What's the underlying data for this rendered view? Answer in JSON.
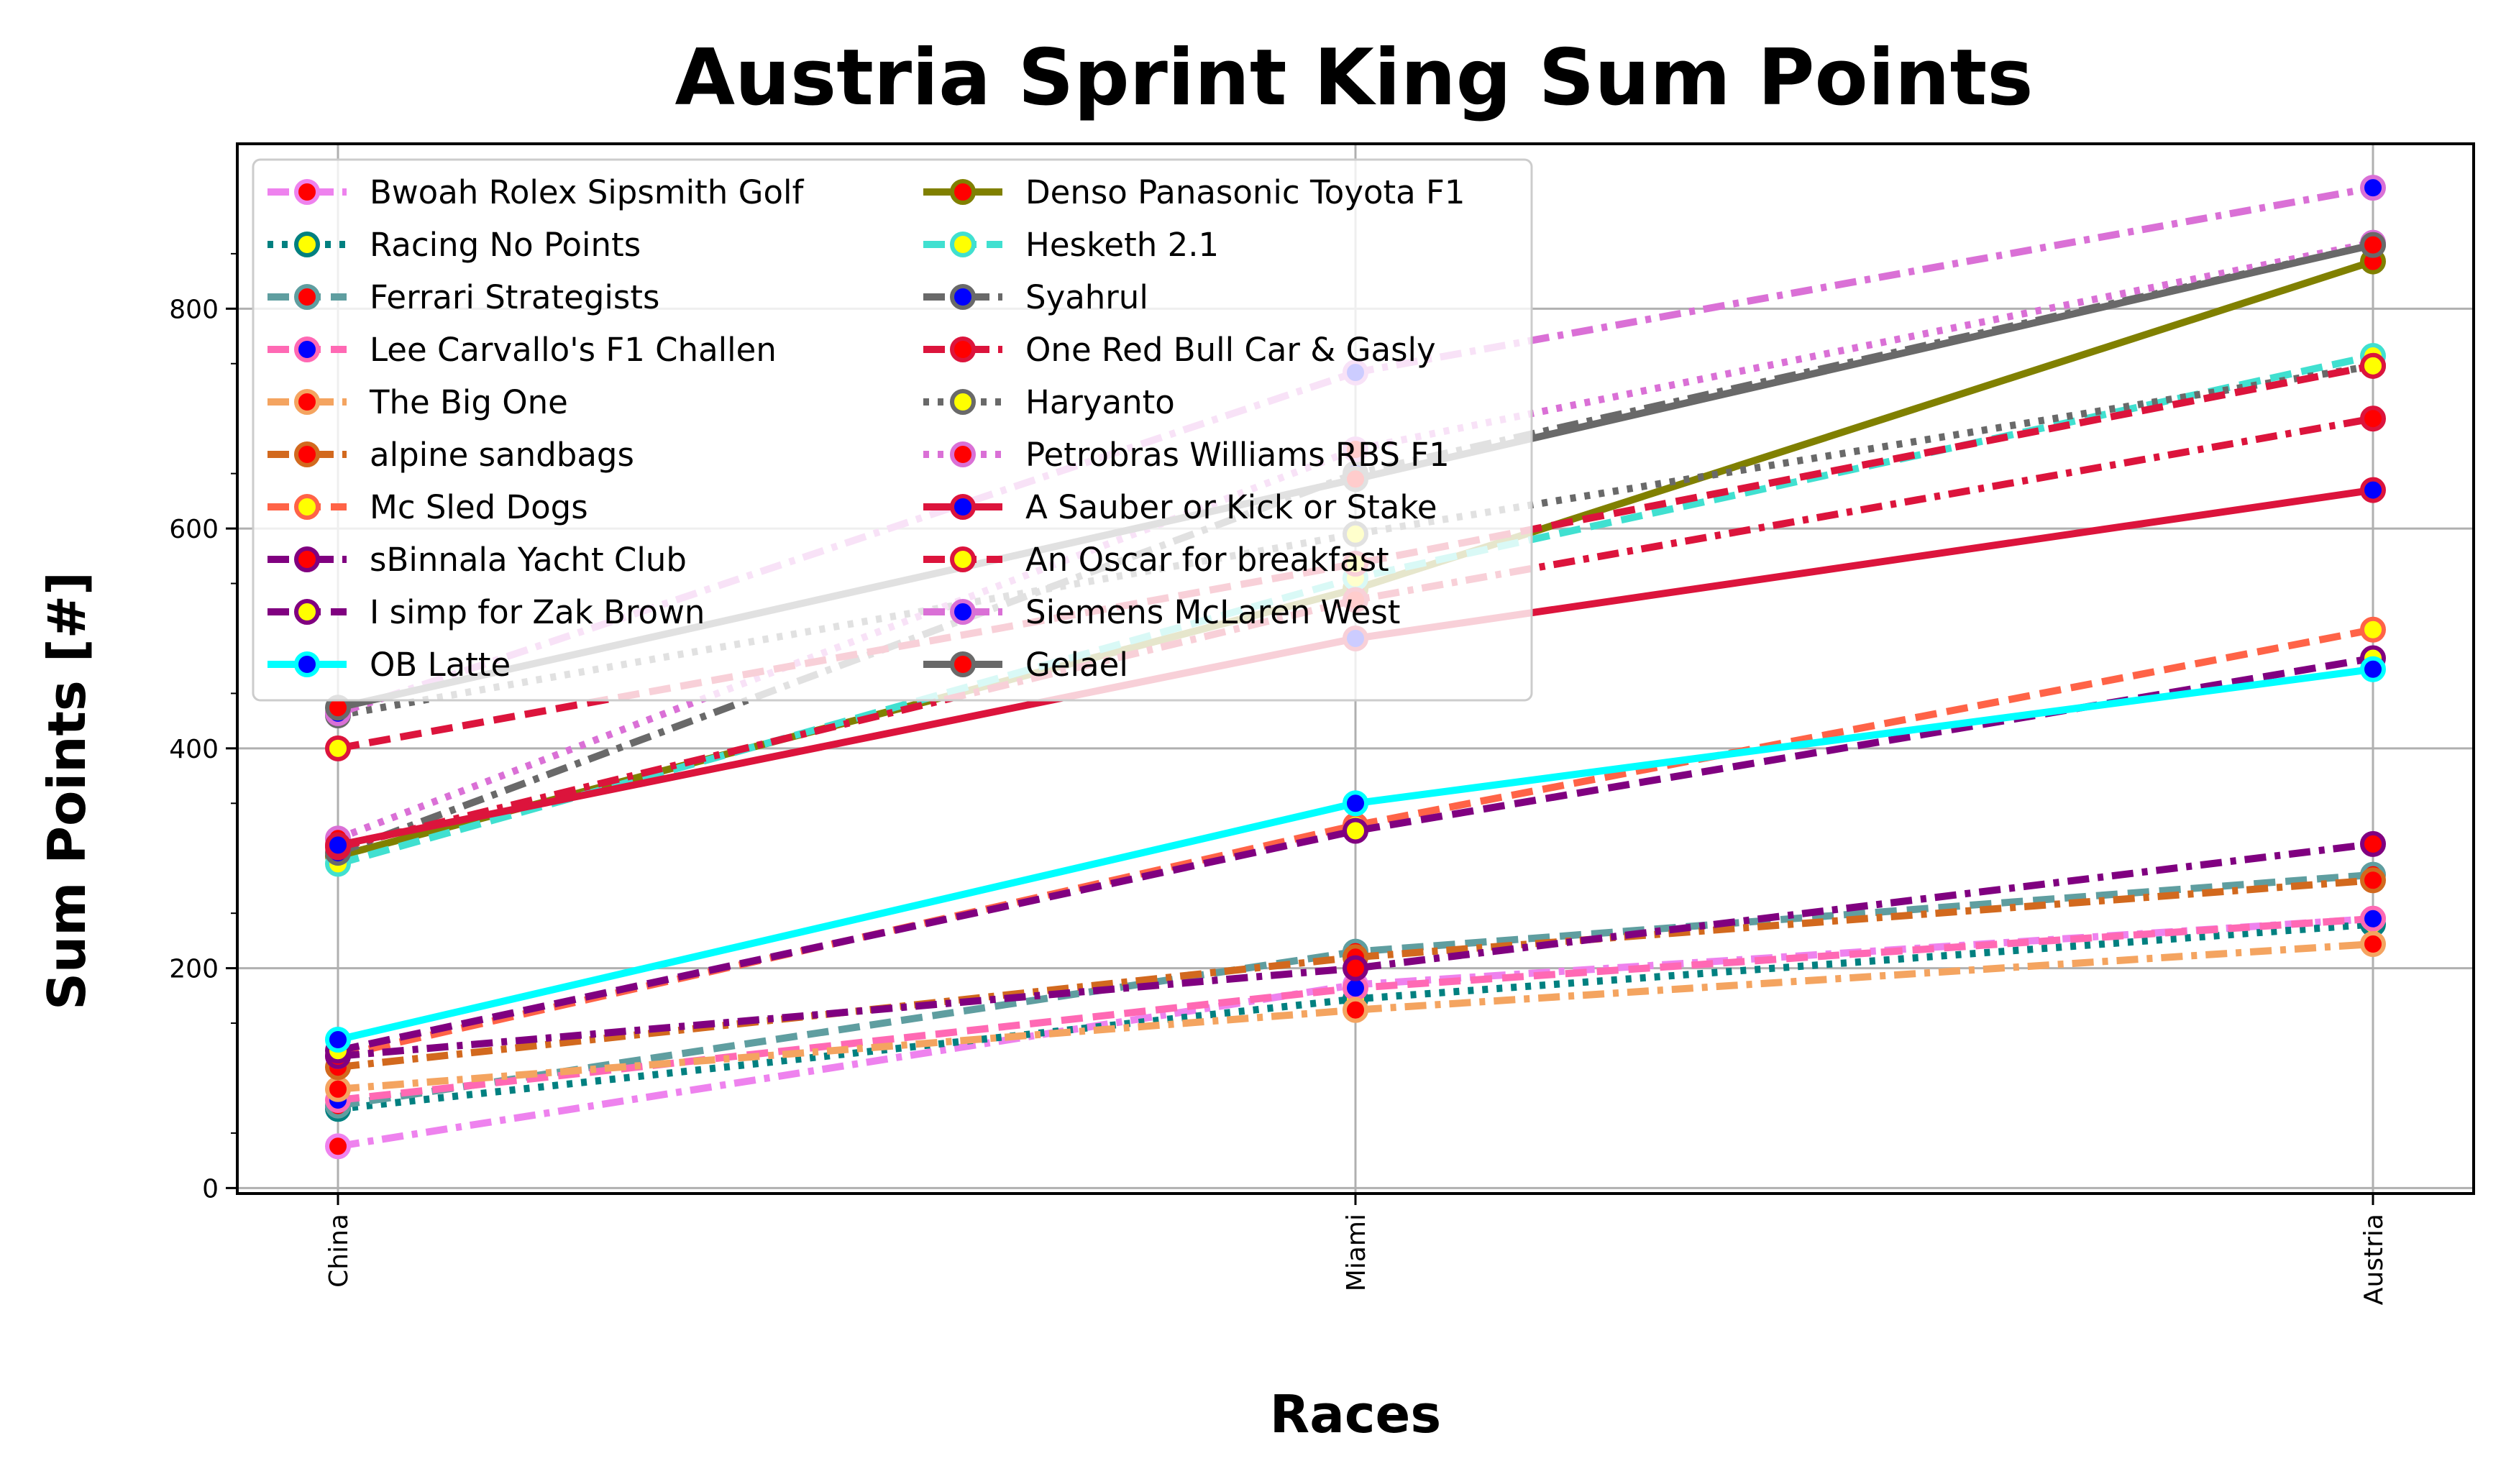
{
  "chart_data": {
    "type": "line",
    "title": "Austria Sprint King Sum Points",
    "xlabel": "Races",
    "ylabel": "Sum Points [#]",
    "categories": [
      "China",
      "Miami",
      "Austria"
    ],
    "ylim": [
      -5,
      950
    ],
    "yticks": [
      0,
      200,
      400,
      600,
      800
    ],
    "grid": true,
    "legend_position": "upper-left",
    "series": [
      {
        "name": "Bwoah Rolex Sipsmith Golf",
        "values": [
          38,
          185,
          245
        ],
        "color": "#ee82ee",
        "marker_fill": "#ff0000",
        "dash": "dashdot"
      },
      {
        "name": "Racing No Points",
        "values": [
          72,
          172,
          240
        ],
        "color": "#008080",
        "marker_fill": "#ffff00",
        "dash": "dotted"
      },
      {
        "name": "Ferrari Strategists",
        "values": [
          75,
          215,
          285
        ],
        "color": "#5f9ea0",
        "marker_fill": "#ff0000",
        "dash": "dashed"
      },
      {
        "name": "Lee Carvallo's F1 Challen",
        "values": [
          80,
          182,
          245
        ],
        "color": "#ff69b4",
        "marker_fill": "#0000ff",
        "dash": "dashed"
      },
      {
        "name": "The Big One",
        "values": [
          90,
          162,
          222
        ],
        "color": "#f4a460",
        "marker_fill": "#ff0000",
        "dash": "dashdot"
      },
      {
        "name": "alpine sandbags",
        "values": [
          110,
          210,
          280
        ],
        "color": "#d2691e",
        "marker_fill": "#ff0000",
        "dash": "dashdot"
      },
      {
        "name": "Mc Sled Dogs",
        "values": [
          120,
          330,
          508
        ],
        "color": "#ff6347",
        "marker_fill": "#ffff00",
        "dash": "dashed"
      },
      {
        "name": "sBinnala Yacht Club",
        "values": [
          120,
          200,
          313
        ],
        "color": "#800080",
        "marker_fill": "#ff0000",
        "dash": "dashdot"
      },
      {
        "name": "I simp for Zak Brown",
        "values": [
          125,
          325,
          482
        ],
        "color": "#800080",
        "marker_fill": "#ffff00",
        "dash": "dashed"
      },
      {
        "name": "OB Latte",
        "values": [
          135,
          350,
          472
        ],
        "color": "#00ffff",
        "marker_fill": "#0000ff",
        "dash": "solid"
      },
      {
        "name": "Denso Panasonic Toyota F1",
        "values": [
          302,
          545,
          843
        ],
        "color": "#808000",
        "marker_fill": "#ff0000",
        "dash": "solid"
      },
      {
        "name": "Hesketh 2.1",
        "values": [
          295,
          555,
          757
        ],
        "color": "#40e0d0",
        "marker_fill": "#ffff00",
        "dash": "dashed"
      },
      {
        "name": "Syahrul",
        "values": [
          305,
          650,
          858
        ],
        "color": "#696969",
        "marker_fill": "#0000ff",
        "dash": "dashdot"
      },
      {
        "name": "One Red Bull Car & Gasly",
        "values": [
          310,
          535,
          700
        ],
        "color": "#dc143c",
        "marker_fill": "#ff0000",
        "dash": "dashdot"
      },
      {
        "name": "Haryanto",
        "values": [
          430,
          595,
          748
        ],
        "color": "#696969",
        "marker_fill": "#ffff00",
        "dash": "dotted"
      },
      {
        "name": "Petrobras Williams RBS F1",
        "values": [
          318,
          672,
          860
        ],
        "color": "#da70d6",
        "marker_fill": "#ff0000",
        "dash": "dotted"
      },
      {
        "name": "A Sauber or Kick or Stake",
        "values": [
          312,
          500,
          635
        ],
        "color": "#dc143c",
        "marker_fill": "#0000ff",
        "dash": "solid"
      },
      {
        "name": "An Oscar for breakfast",
        "values": [
          400,
          568,
          748
        ],
        "color": "#dc143c",
        "marker_fill": "#ffff00",
        "dash": "dashed"
      },
      {
        "name": "Siemens McLaren West",
        "values": [
          432,
          742,
          910
        ],
        "color": "#da70d6",
        "marker_fill": "#0000ff",
        "dash": "dashdot"
      },
      {
        "name": "Gelael",
        "values": [
          437,
          645,
          858
        ],
        "color": "#696969",
        "marker_fill": "#ff0000",
        "dash": "solid"
      }
    ]
  }
}
